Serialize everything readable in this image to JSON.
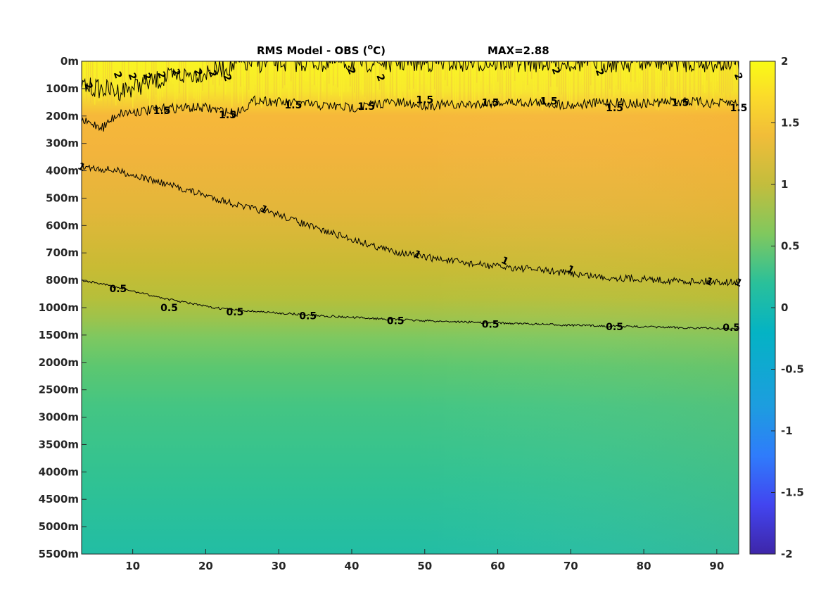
{
  "chart_data": {
    "type": "heatmap",
    "title": "RMS Model - OBS (",
    "title_superscript": "o",
    "title_unit": "C)",
    "annotation": "MAX=2.88",
    "x_range": [
      3,
      93
    ],
    "x_ticks": [
      10,
      20,
      30,
      40,
      50,
      60,
      70,
      80,
      90
    ],
    "x_tick_labels": [
      "10",
      "20",
      "30",
      "40",
      "50",
      "60",
      "70",
      "80",
      "90"
    ],
    "y_tick_labels": [
      "0m",
      "100m",
      "200m",
      "300m",
      "400m",
      "500m",
      "600m",
      "700m",
      "800m",
      "1000m",
      "1500m",
      "2000m",
      "2500m",
      "3000m",
      "3500m",
      "4000m",
      "4500m",
      "5000m",
      "5500m"
    ],
    "y_scale": "piecewise (100 m steps to 800 m, 200 m to 1000 m, 500 m steps to 5500 m)",
    "colorbar": {
      "range": [
        -2,
        2
      ],
      "ticks": [
        -2,
        -1.5,
        -1,
        -0.5,
        0,
        0.5,
        1,
        1.5,
        2
      ],
      "tick_labels": [
        "-2",
        "-1.5",
        "-1",
        "-0.5",
        "0",
        "0.5",
        "1",
        "1.5",
        "2"
      ],
      "colormap": "parula",
      "colors": [
        "#3e26a8",
        "#4245f0",
        "#2f7cfb",
        "#1d9ddf",
        "#04b3c4",
        "#2ac09a",
        "#80c85e",
        "#c3bd3d",
        "#f1bd39",
        "#fbdc2a",
        "#f9fb15"
      ]
    },
    "contours": [
      {
        "level": 2,
        "label": "2",
        "depth_m": [
          [
            3,
            90
          ],
          [
            8,
            110
          ],
          [
            12,
            80
          ],
          [
            15,
            60
          ],
          [
            20,
            40
          ],
          [
            25,
            10
          ],
          [
            30,
            5
          ],
          [
            45,
            5
          ],
          [
            60,
            5
          ],
          [
            75,
            5
          ],
          [
            90,
            5
          ],
          [
            93,
            5
          ]
        ],
        "label_x": [
          4,
          8,
          10,
          12,
          14,
          16,
          19,
          21,
          23,
          40,
          44,
          68,
          74,
          93
        ],
        "label_depth_m": [
          90,
          50,
          55,
          55,
          50,
          40,
          40,
          45,
          60,
          35,
          60,
          35,
          40,
          55
        ]
      },
      {
        "level": 1.5,
        "label": "1.5",
        "depth_m": [
          [
            3,
            220
          ],
          [
            6,
            240
          ],
          [
            8,
            190
          ],
          [
            12,
            180
          ],
          [
            16,
            170
          ],
          [
            20,
            170
          ],
          [
            24,
            190
          ],
          [
            27,
            140
          ],
          [
            30,
            150
          ],
          [
            35,
            160
          ],
          [
            40,
            170
          ],
          [
            45,
            150
          ],
          [
            50,
            160
          ],
          [
            55,
            160
          ],
          [
            60,
            150
          ],
          [
            65,
            150
          ],
          [
            70,
            160
          ],
          [
            75,
            150
          ],
          [
            80,
            155
          ],
          [
            85,
            145
          ],
          [
            90,
            155
          ],
          [
            93,
            150
          ]
        ],
        "label_x": [
          14,
          23,
          32,
          42,
          50,
          59,
          67,
          76,
          85,
          93
        ],
        "label_depth_m": [
          180,
          195,
          160,
          165,
          140,
          150,
          145,
          170,
          150,
          170
        ]
      },
      {
        "level": 1,
        "label": "1",
        "depth_m": [
          [
            3,
            385
          ],
          [
            8,
            400
          ],
          [
            12,
            430
          ],
          [
            16,
            460
          ],
          [
            20,
            490
          ],
          [
            25,
            530
          ],
          [
            30,
            560
          ],
          [
            35,
            610
          ],
          [
            40,
            650
          ],
          [
            45,
            690
          ],
          [
            50,
            715
          ],
          [
            55,
            735
          ],
          [
            60,
            750
          ],
          [
            65,
            760
          ],
          [
            70,
            775
          ],
          [
            75,
            790
          ],
          [
            80,
            795
          ],
          [
            85,
            805
          ],
          [
            90,
            810
          ],
          [
            93,
            815
          ]
        ],
        "label_x": [
          3,
          28,
          49,
          61,
          70,
          89,
          93
        ],
        "label_depth_m": [
          385,
          540,
          705,
          728,
          760,
          808,
          815
        ]
      },
      {
        "level": 0.5,
        "label": "0.5",
        "depth_m": [
          [
            3,
            800
          ],
          [
            6,
            830
          ],
          [
            10,
            880
          ],
          [
            15,
            940
          ],
          [
            20,
            990
          ],
          [
            25,
            1050
          ],
          [
            30,
            1100
          ],
          [
            40,
            1180
          ],
          [
            50,
            1240
          ],
          [
            60,
            1280
          ],
          [
            70,
            1320
          ],
          [
            80,
            1350
          ],
          [
            90,
            1380
          ],
          [
            93,
            1390
          ]
        ],
        "label_x": [
          8,
          15,
          24,
          34,
          46,
          59,
          76,
          92
        ],
        "label_depth_m": [
          860,
          1000,
          1080,
          1150,
          1240,
          1300,
          1350,
          1360
        ]
      }
    ]
  }
}
